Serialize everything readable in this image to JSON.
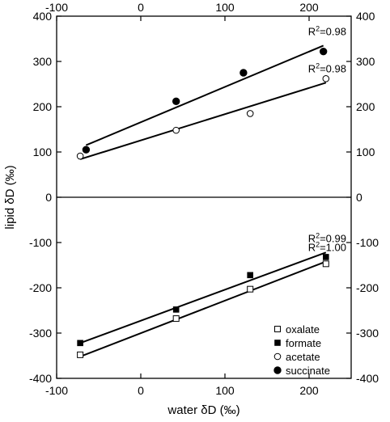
{
  "chart_data": {
    "type": "scatter",
    "xlabel": "water δD (‰)",
    "ylabel": "lipid δD (‰)",
    "xlim": [
      -100,
      250
    ],
    "ylim": [
      -400,
      400
    ],
    "x_ticks": [
      "-100",
      "0",
      "100",
      "200"
    ],
    "y_ticks": [
      "400",
      "300",
      "200",
      "100",
      "0",
      "-100",
      "-200",
      "-300",
      "-400"
    ],
    "panels": [
      {
        "position": "top",
        "series": [
          {
            "name": "succinate",
            "marker": "filled-circle",
            "points": [
              [
                -65,
                105
              ],
              [
                42,
                212
              ],
              [
                122,
                275
              ],
              [
                217,
                322
              ]
            ],
            "fit": [
              [
                -65,
                115
              ],
              [
                217,
                335
              ]
            ],
            "r2_label": "R²=0.98"
          },
          {
            "name": "acetate",
            "marker": "open-circle",
            "points": [
              [
                -72,
                91
              ],
              [
                42,
                148
              ],
              [
                130,
                185
              ],
              [
                220,
                262
              ]
            ],
            "fit": [
              [
                -72,
                84
              ],
              [
                220,
                253
              ]
            ],
            "r2_label": "R²=0.98"
          }
        ]
      },
      {
        "position": "bottom",
        "series": [
          {
            "name": "formate",
            "marker": "filled-square",
            "points": [
              [
                -72,
                -322
              ],
              [
                42,
                -248
              ],
              [
                130,
                -172
              ],
              [
                220,
                -132
              ]
            ],
            "fit": [
              [
                -72,
                -322
              ],
              [
                220,
                -122
              ]
            ],
            "r2_label": "R²=0.99"
          },
          {
            "name": "oxalate",
            "marker": "open-square",
            "points": [
              [
                -72,
                -348
              ],
              [
                42,
                -268
              ],
              [
                130,
                -203
              ],
              [
                220,
                -147
              ]
            ],
            "fit": [
              [
                -72,
                -352
              ],
              [
                220,
                -142
              ]
            ],
            "r2_label": "R²=1.00"
          }
        ]
      }
    ],
    "legend": {
      "placement": "bottom-right",
      "entries": [
        {
          "name": "oxalate",
          "marker": "open-square"
        },
        {
          "name": "formate",
          "marker": "filled-square"
        },
        {
          "name": "acetate",
          "marker": "open-circle"
        },
        {
          "name": "succinate",
          "marker": "filled-circle"
        }
      ]
    }
  }
}
